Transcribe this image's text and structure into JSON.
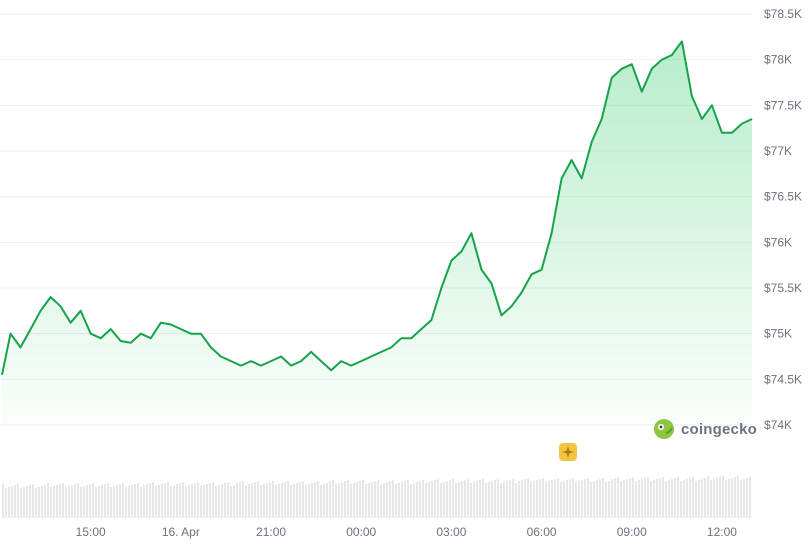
{
  "colors": {
    "line": "#16a34a",
    "fill": "#22c55e",
    "volume": "#e5e7eb",
    "grid": "#eceef1",
    "text": "#6b7280",
    "marker": "#f5c542"
  },
  "brand": {
    "name": "coingecko",
    "logo_icon": "gecko-logo-icon"
  },
  "event_marker": {
    "icon": "sparkle-marker-icon"
  },
  "chart_data": {
    "type": "area",
    "title": "",
    "xlabel": "",
    "ylabel": "",
    "grid": true,
    "x_range": [
      "15 Apr 12:03",
      "16 Apr 13:00"
    ],
    "ylim": [
      74000,
      78500
    ],
    "y_ticks": [
      74000,
      74500,
      75000,
      75500,
      76000,
      76500,
      77000,
      77500,
      78000,
      78500
    ],
    "y_tick_labels": [
      "$74K",
      "$74.5K",
      "$75K",
      "$75.5K",
      "$76K",
      "$76.5K",
      "$77K",
      "$77.5K",
      "$78K",
      "$78.5K"
    ],
    "x_tick_labels": [
      {
        "label": "15:00",
        "time": "15 Apr 15:00"
      },
      {
        "label": "16. Apr",
        "time": "16 Apr 00:00 (date marker)"
      },
      {
        "label": "21:00",
        "time": "15 Apr 21:00"
      },
      {
        "label": "00:00",
        "time": "16 Apr 00:00"
      },
      {
        "label": "03:00",
        "time": "16 Apr 03:00"
      },
      {
        "label": "06:00",
        "time": "16 Apr 06:00"
      },
      {
        "label": "09:00",
        "time": "16 Apr 09:00"
      },
      {
        "label": "12:00",
        "time": "16 Apr 12:00"
      }
    ],
    "series": [
      {
        "values_note": "approximate prices read from chart, oldest to newest",
        "x": [
          "12:03",
          "12:20",
          "12:40",
          "13:00",
          "13:20",
          "13:40",
          "14:00",
          "14:20",
          "14:40",
          "15:00",
          "15:20",
          "15:40",
          "16:00",
          "16:20",
          "16:40",
          "17:00",
          "17:20",
          "17:40",
          "18:00",
          "18:20",
          "18:40",
          "19:00",
          "19:20",
          "19:40",
          "20:00",
          "20:20",
          "20:40",
          "21:00",
          "21:20",
          "21:40",
          "22:00",
          "22:20",
          "22:40",
          "23:00",
          "23:20",
          "23:40",
          "00:00",
          "00:20",
          "00:40",
          "01:00",
          "01:20",
          "01:40",
          "02:00",
          "02:20",
          "02:40",
          "03:00",
          "03:20",
          "03:40",
          "04:00",
          "04:20",
          "04:40",
          "05:00",
          "05:20",
          "05:40",
          "06:00",
          "06:20",
          "06:40",
          "07:00",
          "07:20",
          "07:40",
          "08:00",
          "08:20",
          "08:40",
          "09:00",
          "09:20",
          "09:40",
          "10:00",
          "10:20",
          "10:40",
          "11:00",
          "11:20",
          "11:40",
          "12:00",
          "12:20",
          "12:40",
          "13:00"
        ],
        "values": [
          74550,
          75000,
          74850,
          75050,
          75250,
          75400,
          75300,
          75120,
          75250,
          75000,
          74950,
          75050,
          74920,
          74900,
          75000,
          74950,
          75120,
          75100,
          75050,
          75000,
          75000,
          74850,
          74750,
          74700,
          74650,
          74700,
          74650,
          74700,
          74750,
          74650,
          74700,
          74800,
          74700,
          74600,
          74700,
          74650,
          74700,
          74750,
          74800,
          74850,
          74950,
          74950,
          75050,
          75150,
          75500,
          75800,
          75900,
          76100,
          75700,
          75550,
          75200,
          75300,
          75450,
          75650,
          75700,
          76100,
          76700,
          76900,
          76700,
          77100,
          77350,
          77800,
          77900,
          77950,
          77650,
          77900,
          78000,
          78050,
          78200,
          77600,
          77350,
          77500,
          77200,
          77200,
          77300,
          77350
        ]
      }
    ]
  }
}
